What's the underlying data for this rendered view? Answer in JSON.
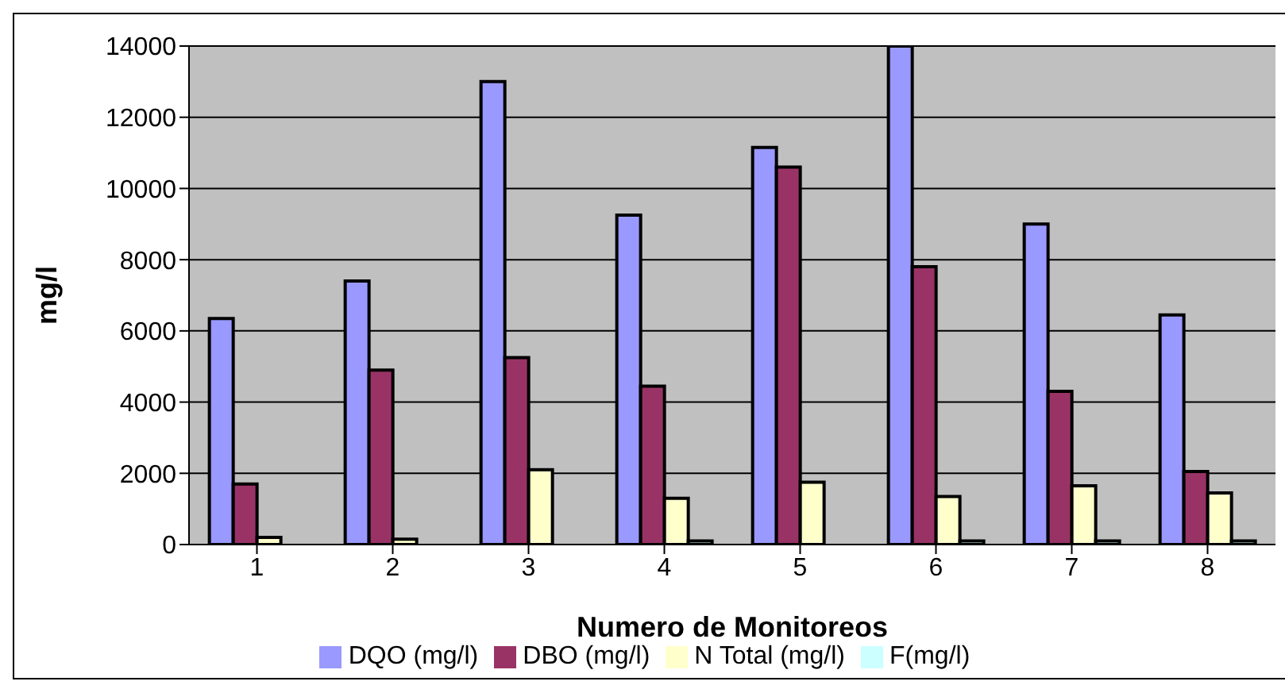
{
  "chart_data": {
    "type": "bar",
    "xlabel": "Numero de Monitoreos",
    "ylabel": "mg/l",
    "categories": [
      "1",
      "2",
      "3",
      "4",
      "5",
      "6",
      "7",
      "8"
    ],
    "series": [
      {
        "name": "DQO (mg/l)",
        "color": "#9999ff",
        "values": [
          6350,
          7400,
          13000,
          9250,
          11150,
          14000,
          9000,
          6450
        ]
      },
      {
        "name": "DBO (mg/l)",
        "color": "#993366",
        "values": [
          1700,
          4900,
          5250,
          4450,
          10600,
          7800,
          4300,
          2050
        ]
      },
      {
        "name": "N Total (mg/l)",
        "color": "#ffffcc",
        "values": [
          200,
          150,
          2100,
          1300,
          1750,
          1350,
          1650,
          1450
        ]
      },
      {
        "name": "F(mg/l)",
        "color": "#ccffff",
        "values": [
          0,
          0,
          0,
          100,
          0,
          100,
          100,
          100
        ]
      }
    ],
    "ylim": [
      0,
      14000
    ],
    "yticks": [
      0,
      2000,
      4000,
      6000,
      8000,
      10000,
      12000,
      14000
    ],
    "grid": "y",
    "legend": "bottom"
  }
}
